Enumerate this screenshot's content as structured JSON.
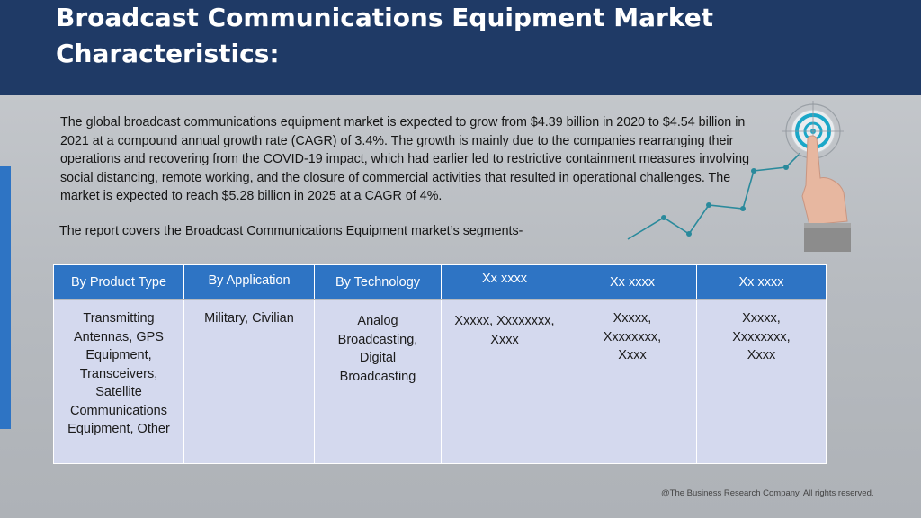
{
  "header": {
    "title": "Broadcast Communications Equipment Market Characteristics:"
  },
  "body": {
    "paragraph": "The global broadcast communications equipment market is expected to grow from $4.39 billion in 2020 to $4.54 billion in 2021 at a compound annual growth rate (CAGR) of 3.4%. The growth is mainly due to the companies rearranging their operations and recovering from the COVID-19 impact, which had earlier led to restrictive containment measures involving social distancing, remote working, and the closure of commercial activities that resulted in operational challenges. The market is expected to reach $5.28 billion in 2025 at a CAGR of 4%.",
    "segments_intro": "The report covers the Broadcast Communications Equipment market’s segments-"
  },
  "table": {
    "headers": [
      "By Product Type",
      "By Application",
      "By Technology",
      "Xx xxxx",
      "Xx xxxx",
      "Xx xxxx"
    ],
    "cells": [
      "Transmitting Antennas, GPS Equipment, Transceivers, Satellite Communications Equipment, Other",
      "Military, Civilian",
      "Analog Broadcasting, Digital Broadcasting",
      "Xxxxx, Xxxxxxxx, Xxxx",
      "Xxxxx, Xxxxxxxx, Xxxx",
      "Xxxxx, Xxxxxxxx, Xxxx"
    ]
  },
  "footer": {
    "copyright": "@The Business Research Company. All rights reserved."
  },
  "colors": {
    "header_bg": "#1f3a66",
    "accent_blue": "#2e74c4",
    "cell_bg": "#d4d9ee",
    "chart_teal": "#2a8a9c"
  },
  "icons": [
    "target-icon",
    "pointing-finger-icon",
    "trend-line-icon"
  ]
}
